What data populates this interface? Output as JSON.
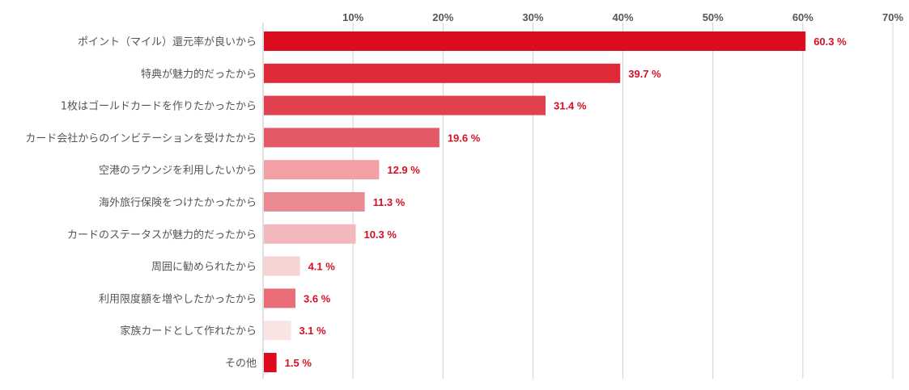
{
  "chart_data": {
    "type": "bar",
    "orientation": "horizontal",
    "categories": [
      "ポイント（マイル）還元率が良いから",
      "特典が魅力的だったから",
      "1枚はゴールドカードを作りたかったから",
      "カード会社からのインビテーションを受けたから",
      "空港のラウンジを利用したいから",
      "海外旅行保険をつけたかったから",
      "カードのステータスが魅力的だったから",
      "周囲に勧められたから",
      "利用限度額を増やしたかったから",
      "家族カードとして作れたから",
      "その他"
    ],
    "values": [
      60.3,
      39.7,
      31.4,
      19.6,
      12.9,
      11.3,
      10.3,
      4.1,
      3.6,
      3.1,
      1.5
    ],
    "value_labels": [
      "60.3 %",
      "39.7 %",
      "31.4 %",
      "19.6 %",
      "12.9 %",
      "11.3 %",
      "10.3 %",
      "4.1 %",
      "3.6 %",
      "3.1 %",
      "1.5 %"
    ],
    "colors": [
      "#dc0c1e",
      "#e02a39",
      "#e2414f",
      "#e55866",
      "#f1a0a5",
      "#e98991",
      "#f2b8bb",
      "#f7d2d3",
      "#e86d77",
      "#f9e4e4",
      "#dc0c1e"
    ],
    "xticks": [
      "10%",
      "20%",
      "30%",
      "40%",
      "50%",
      "60%",
      "70%"
    ],
    "xlim": [
      0,
      70
    ],
    "grid": true,
    "value_label_color": "#d50f25",
    "title": "",
    "xlabel": "",
    "ylabel": ""
  }
}
